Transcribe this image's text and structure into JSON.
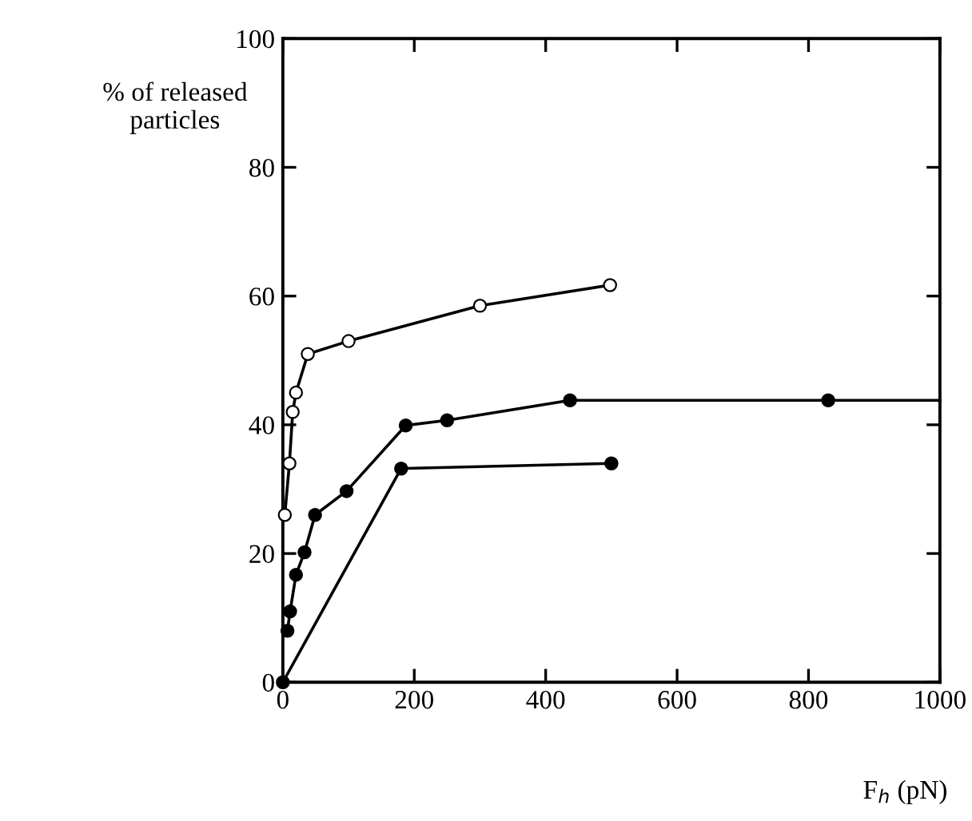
{
  "chart_data": {
    "type": "line",
    "ylabel": "% of released\nparticles",
    "xlabel": "F$_{h}$ (pN)",
    "xlim": [
      0,
      1000
    ],
    "ylim": [
      0,
      100
    ],
    "xticks": [
      0,
      200,
      400,
      600,
      800,
      1000
    ],
    "yticks": [
      0,
      20,
      40,
      60,
      80,
      100
    ],
    "grid": false,
    "legend": false,
    "marker": "circle",
    "line_style": "solid",
    "series": [
      {
        "color": "#000000",
        "colors": [
          "#ffffff",
          "#ffffff",
          "#ffffff",
          "#ffffff",
          "#ffffff",
          "#ffffff",
          "#ffffff",
          "#ffffff"
        ],
        "x": [
          3,
          10,
          15,
          20,
          38,
          100,
          300,
          498
        ],
        "values": [
          26,
          34,
          42,
          45,
          51,
          53,
          58.5,
          61.7
        ]
      },
      {
        "color": "#000000",
        "x": [
          7,
          11,
          20,
          33,
          49,
          97,
          187,
          250,
          437,
          830
        ],
        "values": [
          8,
          11,
          16.7,
          20.2,
          26,
          29.7,
          39.9,
          40.7,
          43.8,
          43.8
        ]
      },
      {
        "color": "#000000",
        "marker": "none",
        "x": [
          830,
          1000
        ],
        "values": [
          43.8,
          43.8
        ]
      },
      {
        "color": "#000000",
        "x": [
          0,
          180,
          500
        ],
        "values": [
          0,
          33.2,
          34
        ]
      }
    ]
  }
}
